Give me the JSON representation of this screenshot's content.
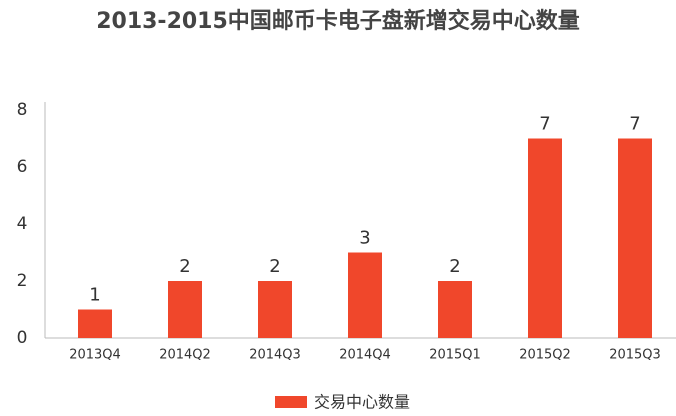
{
  "chart_data": {
    "type": "bar",
    "title": "2013-2015中国邮币卡电子盘新增交易中心数量",
    "categories": [
      "2013Q4",
      "2014Q2",
      "2014Q3",
      "2014Q4",
      "2015Q1",
      "2015Q2",
      "2015Q3"
    ],
    "series": [
      {
        "name": "交易中心数量",
        "color": "#f0472b",
        "values": [
          1,
          2,
          2,
          3,
          2,
          7,
          7
        ]
      }
    ],
    "ylim": [
      0,
      8
    ],
    "yticks": [
      0,
      2,
      4,
      6,
      8
    ],
    "grid": false,
    "legend": "bottom"
  }
}
